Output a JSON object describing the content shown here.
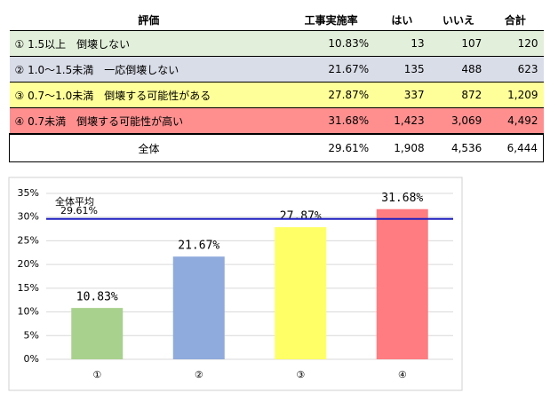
{
  "table": {
    "header": [
      "評価",
      "工事実施率",
      "はい",
      "いいえ",
      "合計"
    ],
    "rows": [
      [
        "① 1.5以上　倒壊しない",
        "10.83%",
        "13",
        "107",
        "120"
      ],
      [
        "② 1.0～1.5未満　一応倒壊しない",
        "21.67%",
        "135",
        "488",
        "623"
      ],
      [
        "③ 0.7～1.0未満　倒壊する可能性がある",
        "27.87%",
        "337",
        "872",
        "1,209"
      ],
      [
        "④ 0.7未満　倒壊する可能性が高い",
        "31.68%",
        "1,423",
        "3,069",
        "4,492"
      ],
      [
        "全体",
        "29.61%",
        "1,908",
        "4,536",
        "6,444"
      ]
    ]
  },
  "chart_data": {
    "type": "bar",
    "categories": [
      "①",
      "②",
      "③",
      "④"
    ],
    "values": [
      10.83,
      21.67,
      27.87,
      31.68
    ],
    "value_labels": [
      "10.83%",
      "21.67%",
      "27.87%",
      "31.68%"
    ],
    "colors": [
      "#a9d18e",
      "#8faadc",
      "#ffff66",
      "#ff7c80"
    ],
    "ylim": [
      0,
      35
    ],
    "yticks": [
      {
        "value": 0,
        "label": "0%"
      },
      {
        "value": 5,
        "label": "5%"
      },
      {
        "value": 10,
        "label": "10%"
      },
      {
        "value": 15,
        "label": "15%"
      },
      {
        "value": 20,
        "label": "20%"
      },
      {
        "value": 25,
        "label": "25%"
      },
      {
        "value": 30,
        "label": "30%"
      },
      {
        "value": 35,
        "label": "35%"
      }
    ],
    "grid": true,
    "reference_line": {
      "value": 29.61,
      "label": "全体平均",
      "value_label": "29.61%",
      "color": "#2020c0"
    }
  }
}
